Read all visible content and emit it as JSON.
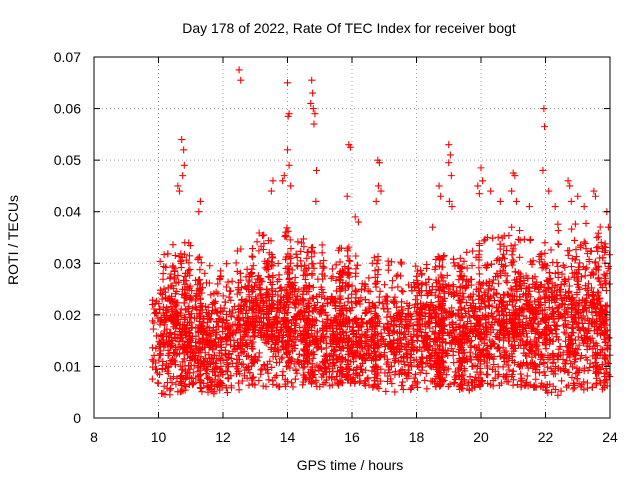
{
  "chart_data": {
    "type": "scatter",
    "title": "Day 178 of 2022, Rate Of TEC Index for receiver bogt",
    "xlabel": "GPS time / hours",
    "ylabel": "ROTI / TECUs",
    "xlim": [
      8,
      24
    ],
    "ylim": [
      0,
      0.07
    ],
    "xticks": [
      8,
      10,
      12,
      14,
      16,
      18,
      20,
      22,
      24
    ],
    "yticks": [
      0,
      0.01,
      0.02,
      0.03,
      0.04,
      0.05,
      0.06,
      0.07
    ],
    "xtick_labels": [
      "8",
      "10",
      "12",
      "14",
      "16",
      "18",
      "20",
      "22",
      "24"
    ],
    "ytick_labels": [
      "0",
      "0.01",
      "0.02",
      "0.03",
      "0.04",
      "0.05",
      "0.06",
      "0.07"
    ],
    "grid": true,
    "legend": "none",
    "marker": "plus",
    "series_color": "#ff0000",
    "density_envelope": {
      "x": [
        9.8,
        10.5,
        11.0,
        11.5,
        12.0,
        12.5,
        13.0,
        13.5,
        14.0,
        14.5,
        15.0,
        15.5,
        16.0,
        16.5,
        17.0,
        17.5,
        18.0,
        18.5,
        19.0,
        19.5,
        20.0,
        20.5,
        21.0,
        21.5,
        22.0,
        22.5,
        23.0,
        23.5,
        24.0
      ],
      "ylow": [
        0.004,
        0.004,
        0.005,
        0.005,
        0.004,
        0.005,
        0.006,
        0.006,
        0.006,
        0.006,
        0.006,
        0.006,
        0.006,
        0.006,
        0.005,
        0.005,
        0.005,
        0.006,
        0.006,
        0.005,
        0.006,
        0.006,
        0.006,
        0.006,
        0.005,
        0.004,
        0.005,
        0.005,
        0.006
      ],
      "ymid": [
        0.016,
        0.017,
        0.016,
        0.015,
        0.015,
        0.017,
        0.019,
        0.018,
        0.019,
        0.018,
        0.017,
        0.016,
        0.016,
        0.015,
        0.015,
        0.016,
        0.016,
        0.016,
        0.016,
        0.016,
        0.017,
        0.018,
        0.018,
        0.017,
        0.018,
        0.019,
        0.019,
        0.019,
        0.018
      ],
      "yhigh": [
        0.03,
        0.034,
        0.034,
        0.033,
        0.03,
        0.033,
        0.036,
        0.036,
        0.038,
        0.036,
        0.035,
        0.034,
        0.034,
        0.032,
        0.031,
        0.031,
        0.03,
        0.031,
        0.032,
        0.033,
        0.034,
        0.037,
        0.038,
        0.036,
        0.036,
        0.038,
        0.039,
        0.038,
        0.037
      ],
      "density": [
        0.5,
        1.0,
        1.0,
        0.9,
        0.8,
        0.9,
        1.0,
        1.0,
        1.0,
        1.0,
        0.9,
        0.9,
        0.8,
        0.8,
        0.8,
        0.8,
        0.8,
        0.8,
        0.8,
        0.8,
        0.9,
        1.0,
        1.0,
        1.0,
        1.0,
        1.0,
        1.0,
        1.0,
        1.0
      ]
    },
    "outliers": [
      {
        "x": 10.72,
        "y": 0.054
      },
      {
        "x": 10.78,
        "y": 0.052
      },
      {
        "x": 10.8,
        "y": 0.049
      },
      {
        "x": 10.75,
        "y": 0.047
      },
      {
        "x": 10.6,
        "y": 0.045
      },
      {
        "x": 10.65,
        "y": 0.044
      },
      {
        "x": 11.3,
        "y": 0.042
      },
      {
        "x": 11.25,
        "y": 0.04
      },
      {
        "x": 12.5,
        "y": 0.0675
      },
      {
        "x": 12.55,
        "y": 0.0655
      },
      {
        "x": 13.5,
        "y": 0.044
      },
      {
        "x": 13.55,
        "y": 0.046
      },
      {
        "x": 14.0,
        "y": 0.065
      },
      {
        "x": 14.05,
        "y": 0.059
      },
      {
        "x": 14.02,
        "y": 0.0585
      },
      {
        "x": 14.0,
        "y": 0.052
      },
      {
        "x": 14.05,
        "y": 0.049
      },
      {
        "x": 13.9,
        "y": 0.047
      },
      {
        "x": 13.85,
        "y": 0.046
      },
      {
        "x": 14.1,
        "y": 0.045
      },
      {
        "x": 14.75,
        "y": 0.0655
      },
      {
        "x": 14.78,
        "y": 0.063
      },
      {
        "x": 14.72,
        "y": 0.061
      },
      {
        "x": 14.8,
        "y": 0.06
      },
      {
        "x": 14.85,
        "y": 0.059
      },
      {
        "x": 14.82,
        "y": 0.057
      },
      {
        "x": 14.9,
        "y": 0.048
      },
      {
        "x": 14.88,
        "y": 0.042
      },
      {
        "x": 15.9,
        "y": 0.053
      },
      {
        "x": 15.95,
        "y": 0.0525
      },
      {
        "x": 15.85,
        "y": 0.043
      },
      {
        "x": 16.1,
        "y": 0.039
      },
      {
        "x": 16.2,
        "y": 0.038
      },
      {
        "x": 16.8,
        "y": 0.05
      },
      {
        "x": 16.85,
        "y": 0.0495
      },
      {
        "x": 16.82,
        "y": 0.045
      },
      {
        "x": 16.9,
        "y": 0.044
      },
      {
        "x": 16.75,
        "y": 0.042
      },
      {
        "x": 18.5,
        "y": 0.037
      },
      {
        "x": 18.7,
        "y": 0.045
      },
      {
        "x": 18.75,
        "y": 0.043
      },
      {
        "x": 19.0,
        "y": 0.053
      },
      {
        "x": 19.05,
        "y": 0.051
      },
      {
        "x": 19.0,
        "y": 0.0495
      },
      {
        "x": 19.08,
        "y": 0.047
      },
      {
        "x": 19.02,
        "y": 0.042
      },
      {
        "x": 19.1,
        "y": 0.041
      },
      {
        "x": 19.9,
        "y": 0.045
      },
      {
        "x": 19.95,
        "y": 0.0435
      },
      {
        "x": 20.0,
        "y": 0.0485
      },
      {
        "x": 20.05,
        "y": 0.046
      },
      {
        "x": 20.3,
        "y": 0.044
      },
      {
        "x": 20.6,
        "y": 0.042
      },
      {
        "x": 21.0,
        "y": 0.0475
      },
      {
        "x": 21.05,
        "y": 0.047
      },
      {
        "x": 20.95,
        "y": 0.044
      },
      {
        "x": 21.1,
        "y": 0.042
      },
      {
        "x": 21.5,
        "y": 0.041
      },
      {
        "x": 21.95,
        "y": 0.06
      },
      {
        "x": 21.97,
        "y": 0.0565
      },
      {
        "x": 21.92,
        "y": 0.048
      },
      {
        "x": 22.1,
        "y": 0.044
      },
      {
        "x": 22.3,
        "y": 0.041
      },
      {
        "x": 22.7,
        "y": 0.046
      },
      {
        "x": 22.75,
        "y": 0.045
      },
      {
        "x": 22.8,
        "y": 0.042
      },
      {
        "x": 23.0,
        "y": 0.043
      },
      {
        "x": 23.2,
        "y": 0.041
      },
      {
        "x": 23.5,
        "y": 0.044
      },
      {
        "x": 23.55,
        "y": 0.043
      },
      {
        "x": 23.9,
        "y": 0.04
      },
      {
        "x": 23.95,
        "y": 0.037
      }
    ]
  }
}
